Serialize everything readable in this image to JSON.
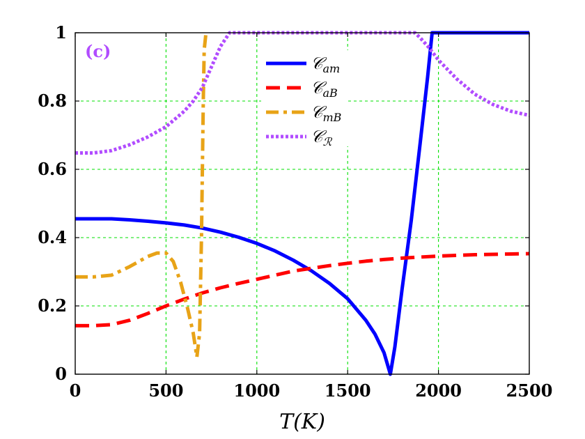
{
  "chart_data": {
    "type": "line",
    "panel_label": "(c)",
    "panel_label_color": "#b14cff",
    "xlabel": "T(K)",
    "ylabel": "",
    "xlim": [
      0,
      2500
    ],
    "ylim": [
      0,
      1
    ],
    "xticks": [
      0,
      500,
      1000,
      1500,
      2000,
      2500
    ],
    "yticks": [
      0,
      0.2,
      0.4,
      0.6,
      0.8,
      1
    ],
    "xtick_labels": [
      "0",
      "500",
      "1000",
      "1500",
      "2000",
      "2500"
    ],
    "ytick_labels": [
      "0",
      "0.2",
      "0.4",
      "0.6",
      "0.8",
      "1"
    ],
    "grid": true,
    "grid_color": "#00e000",
    "legend_position": "top-center",
    "series": [
      {
        "name": "C_am",
        "legend_main": "𝒞",
        "legend_sub": "am",
        "color": "#0000ff",
        "style": "solid",
        "x": [
          0,
          100,
          200,
          300,
          400,
          500,
          600,
          700,
          800,
          900,
          1000,
          1100,
          1200,
          1300,
          1400,
          1500,
          1600,
          1650,
          1700,
          1735,
          1760,
          1800,
          1850,
          1900,
          1940,
          1965,
          2000,
          2100,
          2200,
          2300,
          2400,
          2500
        ],
        "y": [
          0.455,
          0.455,
          0.455,
          0.452,
          0.448,
          0.443,
          0.437,
          0.428,
          0.416,
          0.401,
          0.383,
          0.361,
          0.334,
          0.303,
          0.266,
          0.221,
          0.158,
          0.118,
          0.063,
          0.0,
          0.08,
          0.25,
          0.45,
          0.68,
          0.87,
          1.0,
          1.0,
          1.0,
          1.0,
          1.0,
          1.0,
          1.0
        ]
      },
      {
        "name": "C_aB",
        "legend_main": "𝒞",
        "legend_sub": "aB",
        "color": "#ff0000",
        "style": "dashed",
        "x": [
          0,
          100,
          200,
          300,
          400,
          500,
          600,
          700,
          800,
          900,
          1000,
          1100,
          1200,
          1300,
          1400,
          1500,
          1600,
          1700,
          1800,
          1900,
          2000,
          2100,
          2200,
          2300,
          2400,
          2500
        ],
        "y": [
          0.142,
          0.142,
          0.145,
          0.158,
          0.178,
          0.2,
          0.22,
          0.238,
          0.253,
          0.266,
          0.278,
          0.29,
          0.302,
          0.31,
          0.318,
          0.325,
          0.331,
          0.336,
          0.34,
          0.343,
          0.346,
          0.348,
          0.35,
          0.351,
          0.352,
          0.353
        ]
      },
      {
        "name": "C_mB",
        "legend_main": "𝒞",
        "legend_sub": "mB",
        "color": "#e8a317",
        "style": "dashdot",
        "x": [
          0,
          100,
          200,
          300,
          400,
          450,
          500,
          540,
          580,
          620,
          650,
          670,
          685,
          695,
          700,
          705,
          710,
          720
        ],
        "y": [
          0.285,
          0.285,
          0.29,
          0.315,
          0.345,
          0.355,
          0.355,
          0.33,
          0.27,
          0.19,
          0.12,
          0.05,
          0.12,
          0.4,
          0.6,
          0.8,
          0.95,
          1.0
        ]
      },
      {
        "name": "C_R",
        "legend_main": "𝒞",
        "legend_sub": "ℛ",
        "color": "#b14cff",
        "style": "dotted",
        "x": [
          0,
          100,
          200,
          300,
          400,
          500,
          600,
          650,
          700,
          750,
          800,
          850,
          900,
          1000,
          1200,
          1400,
          1600,
          1800,
          1870,
          1900,
          1950,
          2000,
          2100,
          2200,
          2300,
          2400,
          2500
        ],
        "y": [
          0.648,
          0.648,
          0.655,
          0.672,
          0.695,
          0.725,
          0.77,
          0.8,
          0.84,
          0.9,
          0.96,
          1.0,
          1.0,
          1.0,
          1.0,
          1.0,
          1.0,
          1.0,
          1.0,
          0.985,
          0.955,
          0.92,
          0.865,
          0.82,
          0.79,
          0.77,
          0.758
        ]
      }
    ]
  }
}
